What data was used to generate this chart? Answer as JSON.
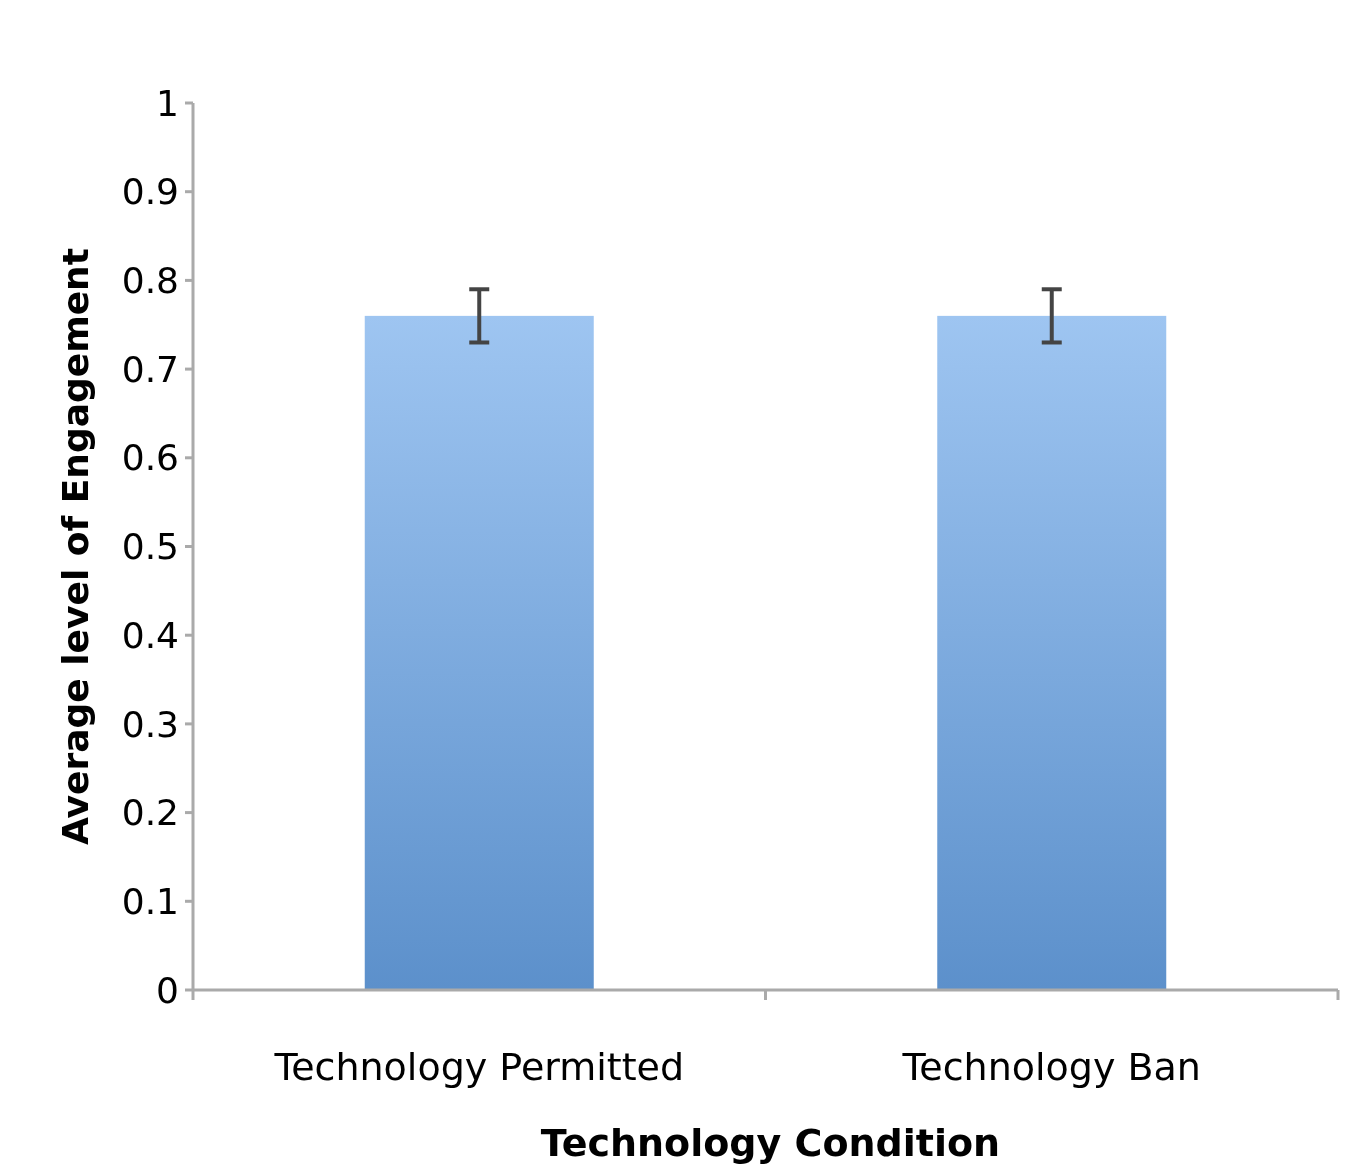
{
  "chart_data": {
    "type": "bar",
    "xlabel": "Technology Condition",
    "ylabel": "Average level of Engagement",
    "categories": [
      "Technology Permitted",
      "Technology Ban"
    ],
    "values": [
      0.76,
      0.76
    ],
    "errors": [
      0.03,
      0.03
    ],
    "color": "#6aa6ea",
    "ylim": [
      0,
      1
    ],
    "yticks": [
      0,
      0.1,
      0.2,
      0.3,
      0.4,
      0.5,
      0.6,
      0.7,
      0.8,
      0.9,
      1
    ],
    "grid": false
  }
}
